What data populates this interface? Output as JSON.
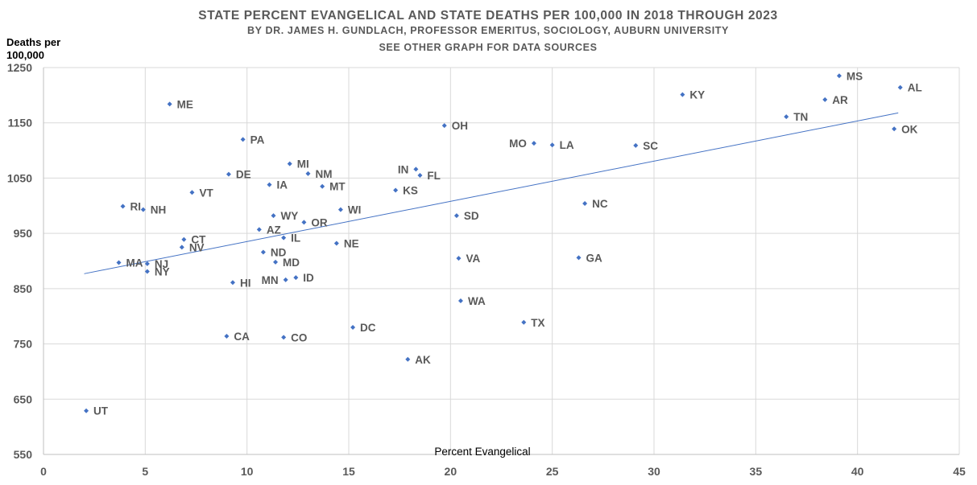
{
  "chart_data": {
    "type": "scatter",
    "title": "STATE PERCENT EVANGELICAL AND STATE DEATHS PER 100,000 IN 2018 THROUGH 2023",
    "subtitle": "BY DR. JAMES H. GUNDLACH, PROFESSOR EMERITUS, SOCIOLOGY, AUBURN UNIVERSITY",
    "subtitle2": "SEE OTHER GRAPH FOR DATA SOURCES",
    "xlabel": "Percent Evangelical",
    "ylabel_line1": "Deaths per",
    "ylabel_line2": "100,000",
    "xlim": [
      0,
      45
    ],
    "ylim": [
      550,
      1250
    ],
    "xticks": [
      0,
      5,
      10,
      15,
      20,
      25,
      30,
      35,
      40,
      45
    ],
    "yticks": [
      550,
      650,
      750,
      850,
      950,
      1050,
      1150,
      1250
    ],
    "grid": true,
    "colors": {
      "marker": "#4472C4",
      "trendline": "#4472C4",
      "grid": "#D9D9D9",
      "text": "#595959"
    },
    "trendline": {
      "type": "linear",
      "x": [
        2.0,
        42.0
      ],
      "y": [
        877,
        1168
      ]
    },
    "points": [
      {
        "label": "UT",
        "x": 2.1,
        "y": 629,
        "pos": "right"
      },
      {
        "label": "MA",
        "x": 3.7,
        "y": 897,
        "pos": "right"
      },
      {
        "label": "RI",
        "x": 3.9,
        "y": 999,
        "pos": "right"
      },
      {
        "label": "NH",
        "x": 4.9,
        "y": 993,
        "pos": "right"
      },
      {
        "label": "NJ",
        "x": 5.1,
        "y": 895,
        "pos": "right"
      },
      {
        "label": "NY",
        "x": 5.1,
        "y": 881,
        "pos": "right"
      },
      {
        "label": "ME",
        "x": 6.2,
        "y": 1184,
        "pos": "right"
      },
      {
        "label": "NV",
        "x": 6.8,
        "y": 925,
        "pos": "right"
      },
      {
        "label": "CT",
        "x": 6.9,
        "y": 939,
        "pos": "right"
      },
      {
        "label": "VT",
        "x": 7.3,
        "y": 1024,
        "pos": "right"
      },
      {
        "label": "CA",
        "x": 9.0,
        "y": 764,
        "pos": "right"
      },
      {
        "label": "DE",
        "x": 9.1,
        "y": 1057,
        "pos": "right"
      },
      {
        "label": "HI",
        "x": 9.3,
        "y": 861,
        "pos": "right"
      },
      {
        "label": "PA",
        "x": 9.8,
        "y": 1120,
        "pos": "right"
      },
      {
        "label": "AZ",
        "x": 10.6,
        "y": 957,
        "pos": "right"
      },
      {
        "label": "ND",
        "x": 10.8,
        "y": 916,
        "pos": "right"
      },
      {
        "label": "IA",
        "x": 11.1,
        "y": 1038,
        "pos": "right"
      },
      {
        "label": "WY",
        "x": 11.3,
        "y": 982,
        "pos": "right"
      },
      {
        "label": "MD",
        "x": 11.4,
        "y": 898,
        "pos": "right"
      },
      {
        "label": "IL",
        "x": 11.8,
        "y": 942,
        "pos": "right"
      },
      {
        "label": "CO",
        "x": 11.8,
        "y": 762,
        "pos": "right"
      },
      {
        "label": "MN",
        "x": 11.9,
        "y": 866,
        "pos": "left"
      },
      {
        "label": "MI",
        "x": 12.1,
        "y": 1076,
        "pos": "right"
      },
      {
        "label": "ID",
        "x": 12.4,
        "y": 870,
        "pos": "right"
      },
      {
        "label": "OR",
        "x": 12.8,
        "y": 970,
        "pos": "right"
      },
      {
        "label": "NM",
        "x": 13.0,
        "y": 1058,
        "pos": "right"
      },
      {
        "label": "MT",
        "x": 13.7,
        "y": 1035,
        "pos": "right"
      },
      {
        "label": "NE",
        "x": 14.4,
        "y": 932,
        "pos": "right"
      },
      {
        "label": "WI",
        "x": 14.6,
        "y": 993,
        "pos": "right"
      },
      {
        "label": "DC",
        "x": 15.2,
        "y": 780,
        "pos": "right"
      },
      {
        "label": "KS",
        "x": 17.3,
        "y": 1028,
        "pos": "right"
      },
      {
        "label": "AK",
        "x": 17.9,
        "y": 722,
        "pos": "right"
      },
      {
        "label": "IN",
        "x": 18.3,
        "y": 1066,
        "pos": "left"
      },
      {
        "label": "FL",
        "x": 18.5,
        "y": 1055,
        "pos": "right"
      },
      {
        "label": "OH",
        "x": 19.7,
        "y": 1145,
        "pos": "right"
      },
      {
        "label": "SD",
        "x": 20.3,
        "y": 982,
        "pos": "right"
      },
      {
        "label": "VA",
        "x": 20.4,
        "y": 905,
        "pos": "right"
      },
      {
        "label": "WA",
        "x": 20.5,
        "y": 828,
        "pos": "right"
      },
      {
        "label": "TX",
        "x": 23.6,
        "y": 789,
        "pos": "right"
      },
      {
        "label": "MO",
        "x": 24.1,
        "y": 1113,
        "pos": "left"
      },
      {
        "label": "LA",
        "x": 25.0,
        "y": 1110,
        "pos": "right"
      },
      {
        "label": "GA",
        "x": 26.3,
        "y": 906,
        "pos": "right"
      },
      {
        "label": "NC",
        "x": 26.6,
        "y": 1004,
        "pos": "right"
      },
      {
        "label": "SC",
        "x": 29.1,
        "y": 1109,
        "pos": "right"
      },
      {
        "label": "KY",
        "x": 31.4,
        "y": 1201,
        "pos": "right"
      },
      {
        "label": "TN",
        "x": 36.5,
        "y": 1161,
        "pos": "right"
      },
      {
        "label": "AR",
        "x": 38.4,
        "y": 1192,
        "pos": "right"
      },
      {
        "label": "MS",
        "x": 39.1,
        "y": 1235,
        "pos": "right"
      },
      {
        "label": "OK",
        "x": 41.8,
        "y": 1139,
        "pos": "right"
      },
      {
        "label": "AL",
        "x": 42.1,
        "y": 1214,
        "pos": "right"
      }
    ]
  }
}
